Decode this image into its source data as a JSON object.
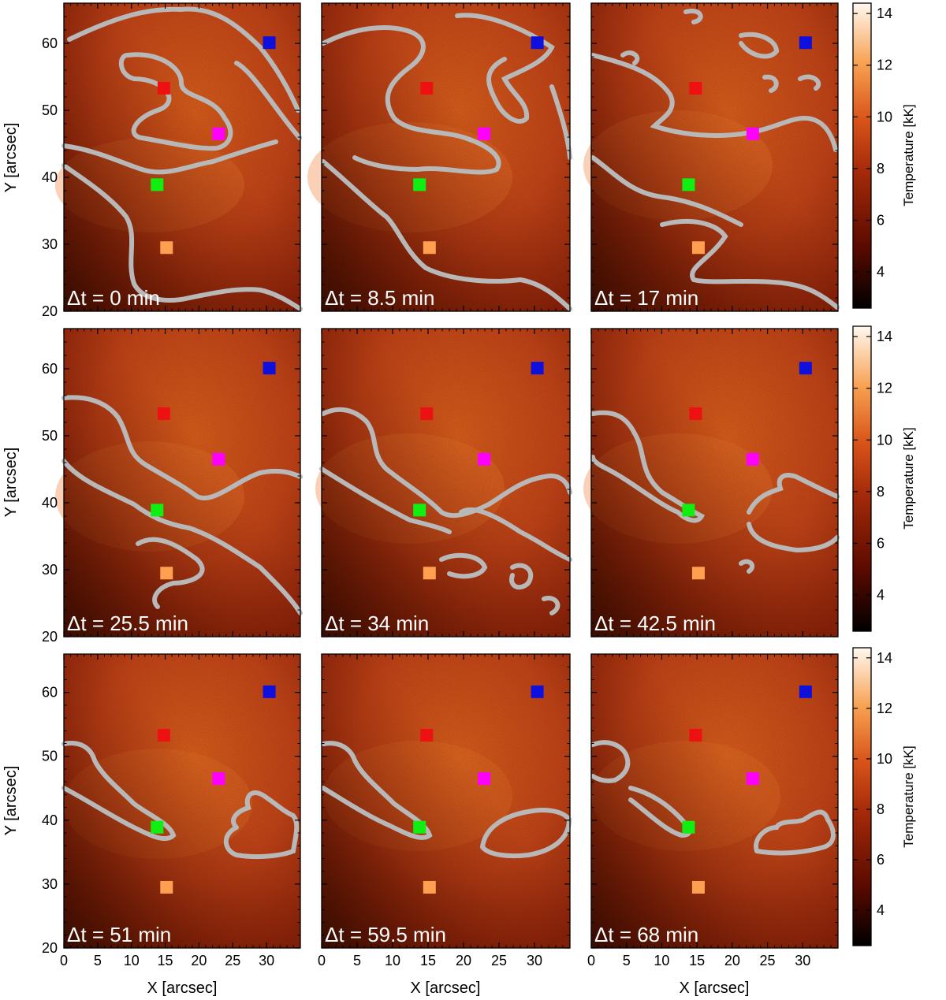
{
  "figure": {
    "x_axis_label": "X [arcsec]",
    "y_axis_label": "Y [arcsec]",
    "colorbar_label": "Temperature [kK]",
    "x_ticks": [
      "0",
      "5",
      "10",
      "15",
      "20",
      "25",
      "30"
    ],
    "y_ticks": [
      "20",
      "30",
      "40",
      "50",
      "60"
    ],
    "colorbar_ticks": [
      "4",
      "6",
      "8",
      "10",
      "12",
      "14"
    ],
    "x_range": [
      0,
      35
    ],
    "y_range": [
      20,
      66
    ],
    "colorbar_range": [
      2.6,
      14.4
    ],
    "contour_color": "#b8b8b8",
    "colormap": [
      "#000000",
      "#5a0a00",
      "#a52a0a",
      "#d9541a",
      "#f7a050",
      "#fff8f0"
    ]
  },
  "panels": [
    {
      "time_label": "Δt = 0 min"
    },
    {
      "time_label": "Δt = 8.5 min"
    },
    {
      "time_label": "Δt = 17 min"
    },
    {
      "time_label": "Δt = 25.5 min"
    },
    {
      "time_label": "Δt = 34 min"
    },
    {
      "time_label": "Δt = 42.5 min"
    },
    {
      "time_label": "Δt = 51 min"
    },
    {
      "time_label": "Δt = 59.5 min"
    },
    {
      "time_label": "Δt = 68 min"
    }
  ],
  "markers": [
    {
      "color_name": "red",
      "color": "#ee1111",
      "x": 14.8,
      "y": 53.3
    },
    {
      "color_name": "blue",
      "color": "#1010dd",
      "x": 30.4,
      "y": 60.1
    },
    {
      "color_name": "magenta",
      "color": "#ff00ff",
      "x": 22.9,
      "y": 46.5
    },
    {
      "color_name": "green",
      "color": "#11ee11",
      "x": 13.8,
      "y": 38.9
    },
    {
      "color_name": "orange",
      "color": "#ffa050",
      "x": 15.2,
      "y": 29.5
    }
  ]
}
